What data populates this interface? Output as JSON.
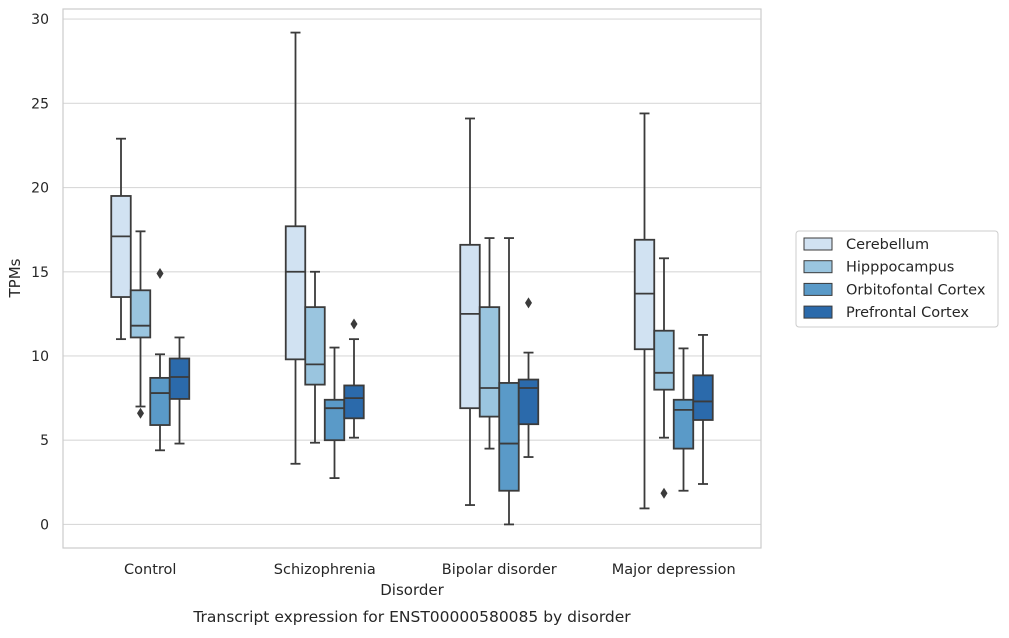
{
  "chart_data": {
    "type": "box",
    "title": "Transcript expression for ENST00000580085 by disorder",
    "xlabel": "Disorder",
    "ylabel": "TPMs",
    "ylim": [
      -1.4,
      30.6
    ],
    "yticks": [
      0,
      5,
      10,
      15,
      20,
      25,
      30
    ],
    "grid": true,
    "legend_placement": "right",
    "categories": [
      "Control",
      "Schizophrenia",
      "Bipolar disorder",
      "Major depression"
    ],
    "series": [
      {
        "name": "Cerebellum",
        "color": "#d1e2f2",
        "boxes": [
          {
            "whisker_low": 11.0,
            "q1": 13.5,
            "median": 17.1,
            "q3": 19.5,
            "whisker_high": 22.9,
            "outliers": []
          },
          {
            "whisker_low": 3.6,
            "q1": 9.8,
            "median": 15.0,
            "q3": 17.7,
            "whisker_high": 29.2,
            "outliers": []
          },
          {
            "whisker_low": 1.15,
            "q1": 6.9,
            "median": 12.5,
            "q3": 16.6,
            "whisker_high": 24.1,
            "outliers": []
          },
          {
            "whisker_low": 0.95,
            "q1": 10.4,
            "median": 13.7,
            "q3": 16.9,
            "whisker_high": 24.4,
            "outliers": []
          }
        ]
      },
      {
        "name": "Hipppocampus",
        "color": "#9ac5df",
        "boxes": [
          {
            "whisker_low": 7.0,
            "q1": 11.1,
            "median": 11.8,
            "q3": 13.9,
            "whisker_high": 17.4,
            "outliers": [
              6.6
            ]
          },
          {
            "whisker_low": 4.85,
            "q1": 8.3,
            "median": 9.5,
            "q3": 12.9,
            "whisker_high": 15.0,
            "outliers": []
          },
          {
            "whisker_low": 4.5,
            "q1": 6.4,
            "median": 8.1,
            "q3": 12.9,
            "whisker_high": 17.0,
            "outliers": []
          },
          {
            "whisker_low": 5.15,
            "q1": 8.0,
            "median": 9.0,
            "q3": 11.5,
            "whisker_high": 15.8,
            "outliers": [
              1.85
            ]
          }
        ]
      },
      {
        "name": "Orbitofontal Cortex",
        "color": "#5a9ac8",
        "boxes": [
          {
            "whisker_low": 4.4,
            "q1": 5.9,
            "median": 7.8,
            "q3": 8.7,
            "whisker_high": 10.1,
            "outliers": [
              14.9
            ]
          },
          {
            "whisker_low": 2.75,
            "q1": 5.0,
            "median": 6.9,
            "q3": 7.4,
            "whisker_high": 10.5,
            "outliers": []
          },
          {
            "whisker_low": 0.0,
            "q1": 2.0,
            "median": 4.8,
            "q3": 8.4,
            "whisker_high": 17.0,
            "outliers": []
          },
          {
            "whisker_low": 2.0,
            "q1": 4.5,
            "median": 6.8,
            "q3": 7.4,
            "whisker_high": 10.45,
            "outliers": []
          }
        ]
      },
      {
        "name": "Prefrontal Cortex",
        "color": "#2b6aab",
        "boxes": [
          {
            "whisker_low": 4.8,
            "q1": 7.45,
            "median": 8.75,
            "q3": 9.85,
            "whisker_high": 11.1,
            "outliers": []
          },
          {
            "whisker_low": 5.15,
            "q1": 6.3,
            "median": 7.5,
            "q3": 8.25,
            "whisker_high": 11.0,
            "outliers": [
              11.9
            ]
          },
          {
            "whisker_low": 4.0,
            "q1": 5.95,
            "median": 8.1,
            "q3": 8.6,
            "whisker_high": 10.2,
            "outliers": [
              13.15
            ]
          },
          {
            "whisker_low": 2.4,
            "q1": 6.2,
            "median": 7.3,
            "q3": 8.85,
            "whisker_high": 11.25,
            "outliers": []
          }
        ]
      }
    ]
  }
}
